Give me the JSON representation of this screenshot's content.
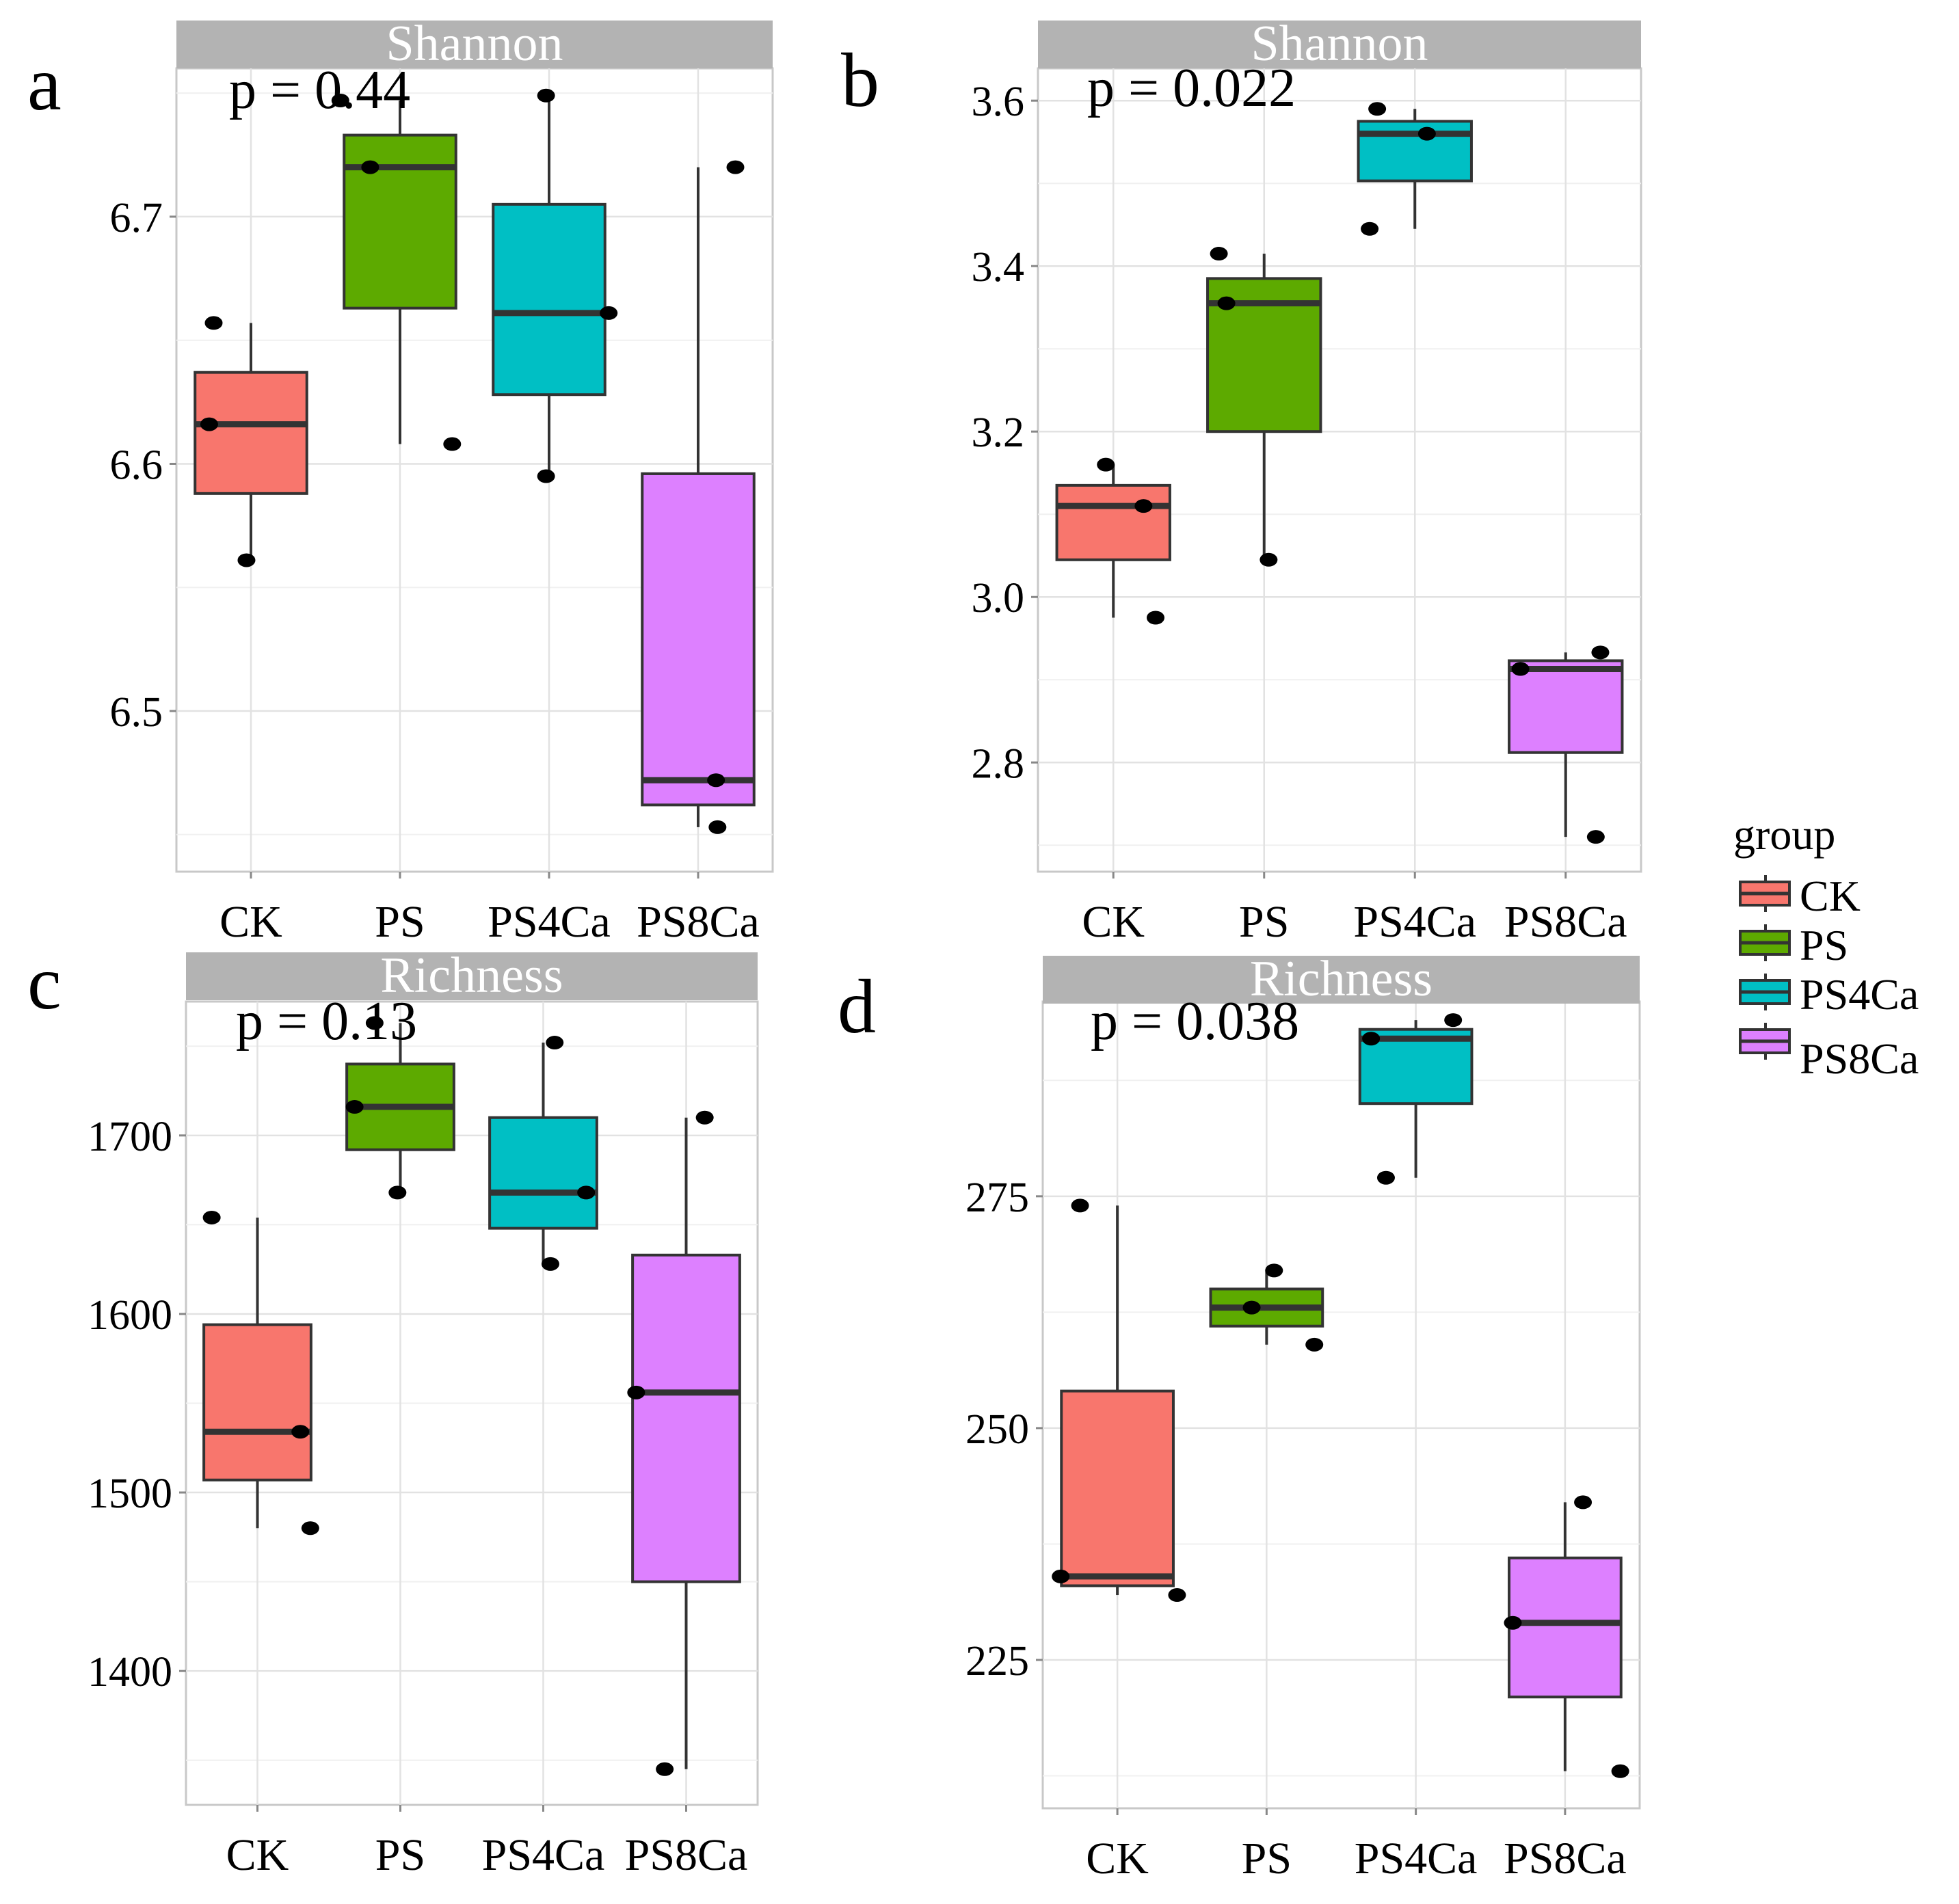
{
  "legend": {
    "title": "group",
    "items": [
      {
        "label": "CK",
        "color": "#F8766D"
      },
      {
        "label": "PS",
        "color": "#5DAA00"
      },
      {
        "label": "PS4Ca",
        "color": "#00BFC4"
      },
      {
        "label": "PS8Ca",
        "color": "#DD80FF"
      }
    ]
  },
  "chart_data": [
    {
      "type": "box",
      "panel_letter": "a",
      "strip_title": "Shannon",
      "annotation": "p = 0.44",
      "categories": [
        "CK",
        "PS",
        "PS4Ca",
        "PS8Ca"
      ],
      "ylim": [
        6.435,
        6.76
      ],
      "yticks": [
        6.5,
        6.6,
        6.7
      ],
      "ytick_labels": [
        "6.5",
        "6.6",
        "6.7"
      ],
      "boxes": [
        {
          "group": "CK",
          "min": 6.561,
          "q1": 6.588,
          "median": 6.616,
          "q3": 6.637,
          "max": 6.657
        },
        {
          "group": "PS",
          "min": 6.608,
          "q1": 6.663,
          "median": 6.72,
          "q3": 6.733,
          "max": 6.747
        },
        {
          "group": "PS4Ca",
          "min": 6.595,
          "q1": 6.628,
          "median": 6.661,
          "q3": 6.705,
          "max": 6.749
        },
        {
          "group": "PS8Ca",
          "min": 6.453,
          "q1": 6.462,
          "median": 6.472,
          "q3": 6.596,
          "max": 6.72
        }
      ],
      "points": [
        {
          "group": "CK",
          "y": 6.657,
          "jitter": -0.25
        },
        {
          "group": "CK",
          "y": 6.616,
          "jitter": -0.28
        },
        {
          "group": "CK",
          "y": 6.561,
          "jitter": -0.03
        },
        {
          "group": "PS",
          "y": 6.747,
          "jitter": -0.4
        },
        {
          "group": "PS",
          "y": 6.72,
          "jitter": -0.2
        },
        {
          "group": "PS",
          "y": 6.608,
          "jitter": 0.35
        },
        {
          "group": "PS4Ca",
          "y": 6.749,
          "jitter": -0.02
        },
        {
          "group": "PS4Ca",
          "y": 6.661,
          "jitter": 0.4
        },
        {
          "group": "PS4Ca",
          "y": 6.595,
          "jitter": -0.02
        },
        {
          "group": "PS8Ca",
          "y": 6.72,
          "jitter": 0.25
        },
        {
          "group": "PS8Ca",
          "y": 6.472,
          "jitter": 0.12
        },
        {
          "group": "PS8Ca",
          "y": 6.453,
          "jitter": 0.13
        }
      ]
    },
    {
      "type": "box",
      "panel_letter": "b",
      "strip_title": "Shannon",
      "annotation": "p = 0.022",
      "categories": [
        "CK",
        "PS",
        "PS4Ca",
        "PS8Ca"
      ],
      "ylim": [
        2.668,
        3.639
      ],
      "yticks": [
        2.8,
        3.0,
        3.2,
        3.4,
        3.6
      ],
      "ytick_labels": [
        "2.8",
        "3.0",
        "3.2",
        "3.4",
        "3.6"
      ],
      "boxes": [
        {
          "group": "CK",
          "min": 2.975,
          "q1": 3.045,
          "median": 3.11,
          "q3": 3.135,
          "max": 3.16
        },
        {
          "group": "PS",
          "min": 3.045,
          "q1": 3.2,
          "median": 3.355,
          "q3": 3.385,
          "max": 3.415
        },
        {
          "group": "PS4Ca",
          "min": 3.445,
          "q1": 3.503,
          "median": 3.56,
          "q3": 3.575,
          "max": 3.59
        },
        {
          "group": "PS8Ca",
          "min": 2.71,
          "q1": 2.812,
          "median": 2.913,
          "q3": 2.923,
          "max": 2.933
        }
      ],
      "points": [
        {
          "group": "CK",
          "y": 3.16,
          "jitter": -0.05
        },
        {
          "group": "CK",
          "y": 3.11,
          "jitter": 0.2
        },
        {
          "group": "CK",
          "y": 2.975,
          "jitter": 0.28
        },
        {
          "group": "PS",
          "y": 3.415,
          "jitter": -0.3
        },
        {
          "group": "PS",
          "y": 3.355,
          "jitter": -0.25
        },
        {
          "group": "PS",
          "y": 3.045,
          "jitter": 0.03
        },
        {
          "group": "PS4Ca",
          "y": 3.59,
          "jitter": -0.25
        },
        {
          "group": "PS4Ca",
          "y": 3.56,
          "jitter": 0.08
        },
        {
          "group": "PS4Ca",
          "y": 3.445,
          "jitter": -0.3
        },
        {
          "group": "PS8Ca",
          "y": 2.933,
          "jitter": 0.23
        },
        {
          "group": "PS8Ca",
          "y": 2.913,
          "jitter": -0.3
        },
        {
          "group": "PS8Ca",
          "y": 2.71,
          "jitter": 0.2
        }
      ]
    },
    {
      "type": "box",
      "panel_letter": "c",
      "strip_title": "Richness",
      "annotation": "p = 0.13",
      "categories": [
        "CK",
        "PS",
        "PS4Ca",
        "PS8Ca"
      ],
      "ylim": [
        1325,
        1775
      ],
      "yticks": [
        1400,
        1500,
        1600,
        1700
      ],
      "ytick_labels": [
        "1400",
        "1500",
        "1600",
        "1700"
      ],
      "boxes": [
        {
          "group": "CK",
          "min": 1480,
          "q1": 1507,
          "median": 1534,
          "q3": 1594,
          "max": 1654
        },
        {
          "group": "PS",
          "min": 1668,
          "q1": 1692,
          "median": 1716,
          "q3": 1740,
          "max": 1763
        },
        {
          "group": "PS4Ca",
          "min": 1628,
          "q1": 1648,
          "median": 1668,
          "q3": 1710,
          "max": 1752
        },
        {
          "group": "PS8Ca",
          "min": 1345,
          "q1": 1450,
          "median": 1556,
          "q3": 1633,
          "max": 1710
        }
      ],
      "points": [
        {
          "group": "CK",
          "y": 1654,
          "jitter": -0.32
        },
        {
          "group": "CK",
          "y": 1534,
          "jitter": 0.3
        },
        {
          "group": "CK",
          "y": 1480,
          "jitter": 0.37
        },
        {
          "group": "PS",
          "y": 1763,
          "jitter": -0.18
        },
        {
          "group": "PS",
          "y": 1716,
          "jitter": -0.32
        },
        {
          "group": "PS",
          "y": 1668,
          "jitter": -0.02
        },
        {
          "group": "PS4Ca",
          "y": 1752,
          "jitter": 0.08
        },
        {
          "group": "PS4Ca",
          "y": 1668,
          "jitter": 0.3
        },
        {
          "group": "PS4Ca",
          "y": 1628,
          "jitter": 0.05
        },
        {
          "group": "PS8Ca",
          "y": 1710,
          "jitter": 0.13
        },
        {
          "group": "PS8Ca",
          "y": 1556,
          "jitter": -0.35
        },
        {
          "group": "PS8Ca",
          "y": 1345,
          "jitter": -0.15
        }
      ]
    },
    {
      "type": "box",
      "panel_letter": "d",
      "strip_title": "Richness",
      "annotation": "p = 0.038",
      "categories": [
        "CK",
        "PS",
        "PS4Ca",
        "PS8Ca"
      ],
      "ylim": [
        209,
        296
      ],
      "yticks": [
        225,
        250,
        275
      ],
      "ytick_labels": [
        "225",
        "250",
        "275"
      ],
      "boxes": [
        {
          "group": "CK",
          "min": 232,
          "q1": 233,
          "median": 234,
          "q3": 254,
          "max": 274
        },
        {
          "group": "PS",
          "min": 259,
          "q1": 261,
          "median": 263,
          "q3": 265,
          "max": 267
        },
        {
          "group": "PS4Ca",
          "min": 277,
          "q1": 285,
          "median": 292,
          "q3": 293,
          "max": 294
        },
        {
          "group": "PS8Ca",
          "min": 213,
          "q1": 221,
          "median": 229,
          "q3": 236,
          "max": 242
        }
      ],
      "points": [
        {
          "group": "CK",
          "y": 274,
          "jitter": -0.25
        },
        {
          "group": "CK",
          "y": 234,
          "jitter": -0.38
        },
        {
          "group": "CK",
          "y": 232,
          "jitter": 0.4
        },
        {
          "group": "PS",
          "y": 267,
          "jitter": 0.05
        },
        {
          "group": "PS",
          "y": 263,
          "jitter": -0.1
        },
        {
          "group": "PS",
          "y": 259,
          "jitter": 0.32
        },
        {
          "group": "PS4Ca",
          "y": 294,
          "jitter": 0.25
        },
        {
          "group": "PS4Ca",
          "y": 292,
          "jitter": -0.3
        },
        {
          "group": "PS4Ca",
          "y": 277,
          "jitter": -0.2
        },
        {
          "group": "PS8Ca",
          "y": 242,
          "jitter": 0.12
        },
        {
          "group": "PS8Ca",
          "y": 229,
          "jitter": -0.35
        },
        {
          "group": "PS8Ca",
          "y": 213,
          "jitter": 0.37
        }
      ]
    }
  ]
}
